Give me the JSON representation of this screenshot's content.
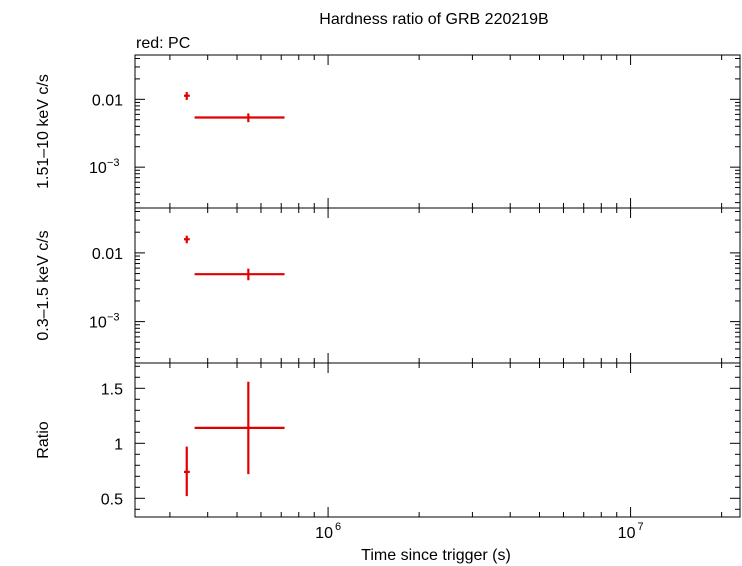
{
  "chart_data": {
    "type": "scatter",
    "title": "Hardness ratio of GRB 220219B",
    "legend_note": "red: PC",
    "xlabel": "Time since trigger (s)",
    "x_scale": "log",
    "x_range": [
      230000,
      23000000
    ],
    "x_ticks": [
      {
        "base": "10",
        "exp": "6",
        "value": 1000000
      },
      {
        "base": "10",
        "exp": "7",
        "value": 10000000
      }
    ],
    "series_color": "#e00000",
    "panels": [
      {
        "id": "hard",
        "ylabel": "1.51–10 keV c/s",
        "y_scale": "log",
        "y_range": [
          0.00025,
          0.045
        ],
        "y_ticks": [
          {
            "value": 0.01,
            "label": "0.01",
            "base": "",
            "exp": ""
          },
          {
            "value": 0.001,
            "label": "",
            "base": "10",
            "exp": "−3"
          }
        ],
        "points": [
          {
            "x": 341000,
            "xlo": 334000,
            "xhi": 349000,
            "y": 0.0113,
            "ylo": 0.0098,
            "yhi": 0.0128
          },
          {
            "x": 545000,
            "xlo": 362000,
            "xhi": 718000,
            "y": 0.0054,
            "ylo": 0.0046,
            "yhi": 0.0062
          }
        ]
      },
      {
        "id": "soft",
        "ylabel": "0.3–1.5 keV c/s",
        "y_scale": "log",
        "y_range": [
          0.00025,
          0.045
        ],
        "y_ticks": [
          {
            "value": 0.01,
            "label": "0.01",
            "base": "",
            "exp": ""
          },
          {
            "value": 0.001,
            "label": "",
            "base": "10",
            "exp": "−3"
          }
        ],
        "points": [
          {
            "x": 341000,
            "xlo": 334000,
            "xhi": 349000,
            "y": 0.0158,
            "ylo": 0.0138,
            "yhi": 0.0178
          },
          {
            "x": 545000,
            "xlo": 362000,
            "xhi": 718000,
            "y": 0.0049,
            "ylo": 0.004,
            "yhi": 0.0059
          }
        ]
      },
      {
        "id": "ratio",
        "ylabel": "Ratio",
        "y_scale": "linear",
        "y_range": [
          0.33,
          1.73
        ],
        "y_ticks": [
          {
            "value": 0.5,
            "label": "0.5",
            "base": "",
            "exp": ""
          },
          {
            "value": 1,
            "label": "1",
            "base": "",
            "exp": ""
          },
          {
            "value": 1.5,
            "label": "1.5",
            "base": "",
            "exp": ""
          }
        ],
        "points": [
          {
            "x": 341000,
            "xlo": 334000,
            "xhi": 349000,
            "y": 0.74,
            "ylo": 0.52,
            "yhi": 0.97
          },
          {
            "x": 545000,
            "xlo": 362000,
            "xhi": 718000,
            "y": 1.14,
            "ylo": 0.72,
            "yhi": 1.56
          }
        ]
      }
    ]
  }
}
